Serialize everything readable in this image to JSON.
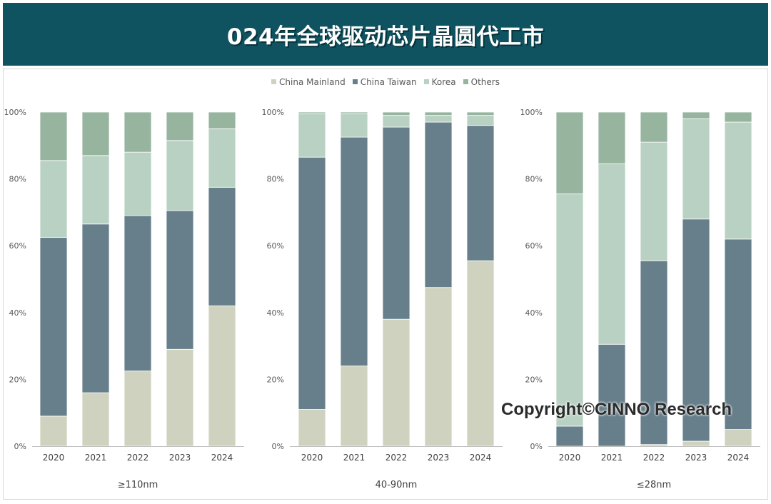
{
  "header": {
    "title": "024年全球驱动芯片晶圆代工市"
  },
  "watermark": "Copyright©CINNO Research",
  "colors": {
    "China Mainland": "#cfd2bf",
    "China Taiwan": "#667f8b",
    "Korea": "#b9d1c3",
    "Others": "#97b49f"
  },
  "chart_data": [
    {
      "type": "bar",
      "stacked": true,
      "xlabel": "≥110nm",
      "categories": [
        "2020",
        "2021",
        "2022",
        "2023",
        "2024"
      ],
      "y_ticks": [
        "0%",
        "20%",
        "40%",
        "60%",
        "80%",
        "100%"
      ],
      "ylim": [
        0,
        100
      ],
      "legend": "top",
      "series": [
        {
          "name": "China Mainland",
          "values": [
            9,
            16,
            22.5,
            29,
            42
          ]
        },
        {
          "name": "China Taiwan",
          "values": [
            53.5,
            50.5,
            46.5,
            41.5,
            35.5
          ]
        },
        {
          "name": "Korea",
          "values": [
            23,
            20.5,
            19,
            21,
            17.5
          ]
        },
        {
          "name": "Others",
          "values": [
            14.5,
            13,
            12,
            8.5,
            5
          ]
        }
      ]
    },
    {
      "type": "bar",
      "stacked": true,
      "xlabel": "40-90nm",
      "categories": [
        "2020",
        "2021",
        "2022",
        "2023",
        "2024"
      ],
      "y_ticks": [
        "0%",
        "20%",
        "40%",
        "60%",
        "80%",
        "100%"
      ],
      "ylim": [
        0,
        100
      ],
      "legend": "top",
      "series": [
        {
          "name": "China Mainland",
          "values": [
            11,
            24,
            38,
            47.5,
            55.5
          ]
        },
        {
          "name": "China Taiwan",
          "values": [
            75.5,
            68.5,
            57.5,
            49.5,
            40.5
          ]
        },
        {
          "name": "Korea",
          "values": [
            13,
            7,
            3.5,
            2,
            3
          ]
        },
        {
          "name": "Others",
          "values": [
            0.5,
            0.5,
            1,
            1,
            1
          ]
        }
      ]
    },
    {
      "type": "bar",
      "stacked": true,
      "xlabel": "≤28nm",
      "categories": [
        "2020",
        "2021",
        "2022",
        "2023",
        "2024"
      ],
      "y_ticks": [
        "0%",
        "20%",
        "40%",
        "60%",
        "80%",
        "100%"
      ],
      "ylim": [
        0,
        100
      ],
      "legend": "top",
      "series": [
        {
          "name": "China Mainland",
          "values": [
            0,
            0,
            0.5,
            1.5,
            5
          ]
        },
        {
          "name": "China Taiwan",
          "values": [
            6,
            30.5,
            55,
            66.5,
            57
          ]
        },
        {
          "name": "Korea",
          "values": [
            69.5,
            54,
            35.5,
            30,
            35
          ]
        },
        {
          "name": "Others",
          "values": [
            24.5,
            15.5,
            9,
            2,
            3
          ]
        }
      ]
    }
  ]
}
